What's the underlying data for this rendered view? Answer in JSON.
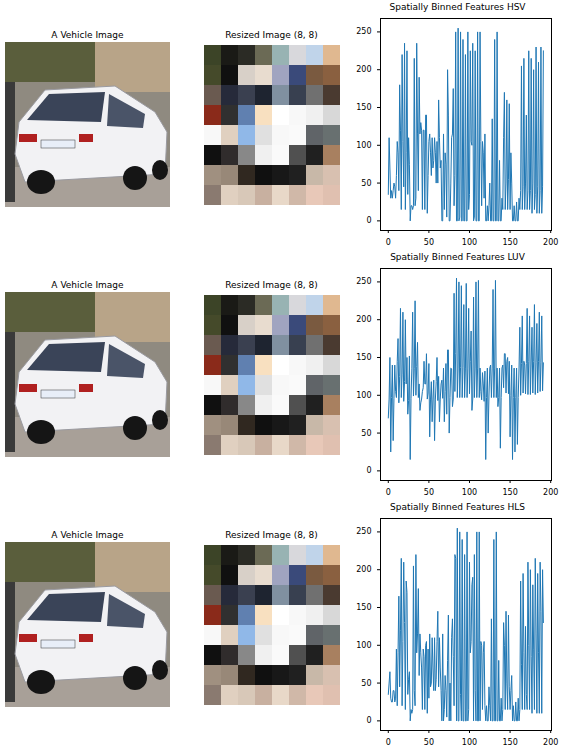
{
  "chart_data": [
    {
      "type": "photo",
      "title": "A Vehicle Image"
    },
    {
      "type": "image",
      "title": "Resized Image (8, 8)",
      "pixels": [
        [
          "#3c4427",
          "#1a1a16",
          "#2b2b25",
          "#6b6a55",
          "#98b3b3",
          "#d8d8dc",
          "#c0d4ea",
          "#e0b890"
        ],
        [
          "#454a2a",
          "#101010",
          "#d8d0c8",
          "#e8dccf",
          "#a0a4c0",
          "#3a4a7a",
          "#7a5a40",
          "#8a6040"
        ],
        [
          "#6a5a50",
          "#262a3a",
          "#3a4050",
          "#1e2430",
          "#8090a0",
          "#384050",
          "#707070",
          "#4a3a30"
        ],
        [
          "#8a2a1a",
          "#303030",
          "#6080b0",
          "#f8e0c0",
          "#ffffff",
          "#f8f8f8",
          "#f0f0f0",
          "#d8d8d8"
        ],
        [
          "#f8f8f8",
          "#e0d0c0",
          "#90b8e8",
          "#e0e0e0",
          "#f8f8f8",
          "#fafafa",
          "#606468",
          "#687070"
        ],
        [
          "#101010",
          "#302c2c",
          "#888888",
          "#f0f0f0",
          "#fafafa",
          "#505050",
          "#202020",
          "#a88060"
        ],
        [
          "#a09080",
          "#988878",
          "#302820",
          "#101010",
          "#181818",
          "#202020",
          "#c8b8a8",
          "#d8c0b0"
        ],
        [
          "#8a7a70",
          "#e0d0c0",
          "#d8c8b8",
          "#c8b0a0",
          "#e8d8c8",
          "#d0b8a8",
          "#e8c8b8",
          "#e0c0b0"
        ]
      ]
    },
    {
      "type": "line",
      "title": "Spatially Binned Features HSV",
      "color": "#1f77b4",
      "xlim": [
        -9.6,
        201
      ],
      "xticks": [
        0,
        50,
        100,
        150,
        200
      ],
      "ylim": [
        -12.75,
        267.75
      ],
      "yticks": [
        0,
        50,
        100,
        150,
        200,
        250
      ],
      "values": [
        35,
        110,
        70,
        30,
        40,
        30,
        40,
        50,
        45,
        30,
        60,
        105,
        90,
        40,
        180,
        120,
        15,
        220,
        105,
        45,
        235,
        15,
        90,
        225,
        35,
        110,
        75,
        0,
        20,
        20,
        15,
        20,
        215,
        20,
        30,
        235,
        115,
        40,
        190,
        115,
        130,
        120,
        15,
        120,
        120,
        15,
        140,
        140,
        10,
        60,
        105,
        115,
        90,
        60,
        110,
        70,
        80,
        110,
        90,
        50,
        105,
        50,
        160,
        110,
        70,
        80,
        0,
        0,
        115,
        15,
        90,
        75,
        5,
        200,
        140,
        0,
        0,
        50,
        110,
        115,
        175,
        20,
        60,
        250,
        0,
        0,
        255,
        0,
        5,
        250,
        0,
        0,
        240,
        0,
        0,
        220,
        0,
        0,
        250,
        15,
        35,
        225,
        105,
        100,
        235,
        0,
        5,
        225,
        0,
        0,
        250,
        0,
        0,
        250,
        105,
        20,
        105,
        90,
        30,
        115,
        0,
        0,
        20,
        0,
        20,
        50,
        0,
        0,
        135,
        0,
        0,
        240,
        0,
        0,
        250,
        0,
        0,
        80,
        0,
        0,
        30,
        15,
        110,
        170,
        15,
        50,
        160,
        15,
        55,
        155,
        15,
        90,
        50,
        0,
        0,
        20,
        0,
        0,
        25,
        0,
        0,
        30,
        15,
        40,
        205,
        15,
        45,
        215,
        15,
        50,
        140,
        15,
        40,
        225,
        15,
        40,
        215,
        10,
        50,
        200,
        15,
        35,
        230,
        10,
        45,
        210,
        10,
        40,
        230,
        10,
        45,
        225
      ]
    },
    {
      "type": "photo",
      "title": "A Vehicle Image"
    },
    {
      "type": "image",
      "title": "Resized Image (8, 8)",
      "pixels": [
        [
          "#3c4427",
          "#1a1a16",
          "#2b2b25",
          "#6b6a55",
          "#98b3b3",
          "#d8d8dc",
          "#c0d4ea",
          "#e0b890"
        ],
        [
          "#454a2a",
          "#101010",
          "#d8d0c8",
          "#e8dccf",
          "#a0a4c0",
          "#3a4a7a",
          "#7a5a40",
          "#8a6040"
        ],
        [
          "#6a5a50",
          "#262a3a",
          "#3a4050",
          "#1e2430",
          "#8090a0",
          "#384050",
          "#707070",
          "#4a3a30"
        ],
        [
          "#8a2a1a",
          "#303030",
          "#6080b0",
          "#f8e0c0",
          "#ffffff",
          "#f8f8f8",
          "#f0f0f0",
          "#d8d8d8"
        ],
        [
          "#f8f8f8",
          "#e0d0c0",
          "#90b8e8",
          "#e0e0e0",
          "#f8f8f8",
          "#fafafa",
          "#606468",
          "#687070"
        ],
        [
          "#101010",
          "#302c2c",
          "#888888",
          "#f0f0f0",
          "#fafafa",
          "#505050",
          "#202020",
          "#a88060"
        ],
        [
          "#a09080",
          "#988878",
          "#302820",
          "#101010",
          "#181818",
          "#202020",
          "#c8b8a8",
          "#d8c0b0"
        ],
        [
          "#8a7a70",
          "#e0d0c0",
          "#d8c8b8",
          "#c8b0a0",
          "#e8d8c8",
          "#d0b8a8",
          "#e8c8b8",
          "#e0c0b0"
        ]
      ]
    },
    {
      "type": "line",
      "title": "Spatially Binned Features LUV",
      "color": "#1f77b4",
      "xlim": [
        -9.6,
        201
      ],
      "xticks": [
        0,
        50,
        100,
        150,
        200
      ],
      "ylim": [
        -12.75,
        267.75
      ],
      "yticks": [
        0,
        50,
        100,
        150,
        200,
        250
      ],
      "values": [
        70,
        95,
        150,
        25,
        97,
        140,
        40,
        96,
        140,
        105,
        97,
        145,
        175,
        90,
        125,
        215,
        97,
        128,
        210,
        92,
        118,
        200,
        115,
        150,
        75,
        93,
        152,
        15,
        96,
        135,
        210,
        99,
        135,
        225,
        100,
        138,
        170,
        97,
        115,
        80,
        90,
        95,
        105,
        110,
        145,
        115,
        115,
        155,
        95,
        103,
        142,
        45,
        95,
        118,
        65,
        95,
        120,
        40,
        95,
        118,
        150,
        93,
        125,
        65,
        95,
        115,
        120,
        96,
        136,
        65,
        105,
        142,
        75,
        160,
        160,
        50,
        97,
        136,
        135,
        85,
        95,
        235,
        105,
        155,
        255,
        97,
        136,
        250,
        97,
        137,
        245,
        97,
        137,
        220,
        97,
        136,
        248,
        97,
        136,
        215,
        102,
        145,
        185,
        80,
        95,
        230,
        97,
        136,
        250,
        97,
        136,
        252,
        97,
        136,
        105,
        94,
        130,
        115,
        92,
        132,
        15,
        97,
        136,
        50,
        99,
        136,
        140,
        97,
        136,
        240,
        97,
        136,
        252,
        97,
        136,
        85,
        97,
        136,
        30,
        97,
        136,
        140,
        110,
        155,
        155,
        103,
        145,
        150,
        102,
        145,
        45,
        100,
        140,
        15,
        97,
        136,
        25,
        97,
        136,
        35,
        97,
        136,
        190,
        100,
        142,
        205,
        103,
        145,
        140,
        102,
        142,
        215,
        101,
        145,
        205,
        101,
        144,
        190,
        103,
        145,
        220,
        101,
        143,
        195,
        103,
        145,
        210,
        105,
        143,
        205,
        106,
        143
      ]
    },
    {
      "type": "photo",
      "title": "A Vehicle Image"
    },
    {
      "type": "image",
      "title": "Resized Image (8, 8)",
      "pixels": [
        [
          "#3c4427",
          "#1a1a16",
          "#2b2b25",
          "#6b6a55",
          "#98b3b3",
          "#d8d8dc",
          "#c0d4ea",
          "#e0b890"
        ],
        [
          "#454a2a",
          "#101010",
          "#d8d0c8",
          "#e8dccf",
          "#a0a4c0",
          "#3a4a7a",
          "#7a5a40",
          "#8a6040"
        ],
        [
          "#6a5a50",
          "#262a3a",
          "#3a4050",
          "#1e2430",
          "#8090a0",
          "#384050",
          "#707070",
          "#4a3a30"
        ],
        [
          "#8a2a1a",
          "#303030",
          "#6080b0",
          "#f8e0c0",
          "#ffffff",
          "#f8f8f8",
          "#f0f0f0",
          "#d8d8d8"
        ],
        [
          "#f8f8f8",
          "#e0d0c0",
          "#90b8e8",
          "#e0e0e0",
          "#f8f8f8",
          "#fafafa",
          "#606468",
          "#687070"
        ],
        [
          "#101010",
          "#302c2c",
          "#888888",
          "#f0f0f0",
          "#fafafa",
          "#505050",
          "#202020",
          "#a88060"
        ],
        [
          "#a09080",
          "#988878",
          "#302820",
          "#101010",
          "#181818",
          "#202020",
          "#c8b8a8",
          "#d8c0b0"
        ],
        [
          "#8a7a70",
          "#e0d0c0",
          "#d8c8b8",
          "#c8b0a0",
          "#e8d8c8",
          "#d0b8a8",
          "#e8c8b8",
          "#e0c0b0"
        ]
      ]
    },
    {
      "type": "line",
      "title": "Spatially Binned Features HLS",
      "color": "#1f77b4",
      "xlim": [
        -9.6,
        201
      ],
      "xticks": [
        0,
        50,
        100,
        150,
        200
      ],
      "ylim": [
        -12.75,
        267.75
      ],
      "yticks": [
        0,
        50,
        100,
        150,
        200,
        250
      ],
      "values": [
        35,
        50,
        65,
        30,
        25,
        25,
        40,
        40,
        25,
        30,
        95,
        20,
        90,
        165,
        45,
        120,
        215,
        20,
        105,
        210,
        130,
        15,
        185,
        170,
        35,
        55,
        65,
        0,
        15,
        10,
        15,
        205,
        40,
        20,
        220,
        90,
        115,
        175,
        60,
        115,
        90,
        70,
        15,
        95,
        85,
        15,
        100,
        105,
        10,
        95,
        30,
        115,
        45,
        50,
        110,
        70,
        40,
        110,
        40,
        55,
        105,
        145,
        45,
        110,
        70,
        40,
        0,
        115,
        0,
        15,
        60,
        40,
        5,
        80,
        140,
        0,
        50,
        0,
        110,
        135,
        85,
        20,
        220,
        215,
        0,
        255,
        0,
        0,
        250,
        35,
        0,
        240,
        0,
        0,
        220,
        0,
        0,
        250,
        0,
        15,
        210,
        90,
        105,
        180,
        190,
        0,
        220,
        40,
        0,
        250,
        0,
        0,
        250,
        0,
        105,
        100,
        15,
        90,
        105,
        20,
        0,
        20,
        0,
        0,
        45,
        20,
        0,
        135,
        0,
        0,
        240,
        0,
        0,
        250,
        0,
        0,
        80,
        0,
        0,
        30,
        0,
        15,
        130,
        100,
        15,
        145,
        50,
        15,
        140,
        45,
        15,
        40,
        60,
        0,
        20,
        0,
        0,
        25,
        0,
        0,
        30,
        0,
        15,
        185,
        75,
        15,
        195,
        90,
        15,
        125,
        35,
        15,
        210,
        100,
        15,
        200,
        85,
        10,
        180,
        95,
        15,
        215,
        115,
        10,
        195,
        90,
        10,
        210,
        145,
        10,
        200,
        130
      ]
    }
  ]
}
